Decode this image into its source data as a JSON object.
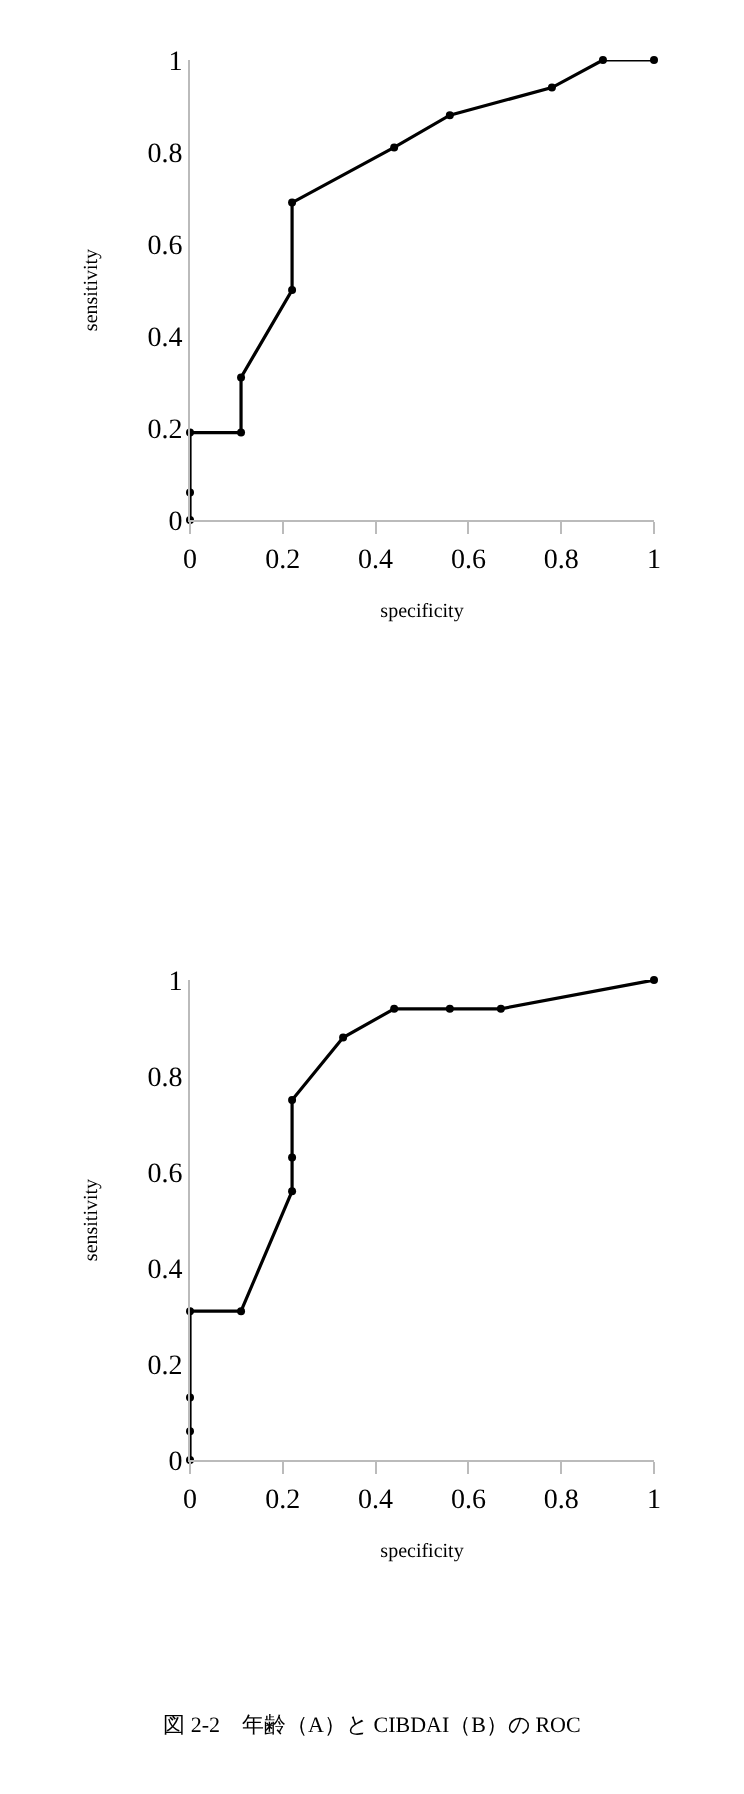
{
  "chart_data": [
    {
      "type": "line",
      "xlabel": "specificity",
      "ylabel": "sensitivity",
      "marker": "circle",
      "line_style": "solid",
      "xlim": [
        0,
        1
      ],
      "ylim": [
        0,
        1
      ],
      "xticks": [
        0,
        0.2,
        0.4,
        0.6,
        0.8,
        1
      ],
      "yticks": [
        0,
        0.2,
        0.4,
        0.6,
        0.8,
        1
      ],
      "series": [
        {
          "color": "#000000",
          "x": [
            0,
            0,
            0,
            0.11,
            0.11,
            0.22,
            0.22,
            0.44,
            0.56,
            0.78,
            0.89,
            1
          ],
          "values": [
            0,
            0.06,
            0.19,
            0.19,
            0.31,
            0.5,
            0.69,
            0.81,
            0.88,
            0.94,
            1,
            1
          ]
        }
      ]
    },
    {
      "type": "line",
      "xlabel": "specificity",
      "ylabel": "sensitivity",
      "marker": "circle",
      "line_style": "solid",
      "xlim": [
        0,
        1
      ],
      "ylim": [
        0,
        1
      ],
      "xticks": [
        0,
        0.2,
        0.4,
        0.6,
        0.8,
        1
      ],
      "yticks": [
        0,
        0.2,
        0.4,
        0.6,
        0.8,
        1
      ],
      "series": [
        {
          "color": "#000000",
          "x": [
            0,
            0,
            0,
            0,
            0.11,
            0.22,
            0.22,
            0.22,
            0.33,
            0.44,
            0.56,
            0.67,
            1
          ],
          "values": [
            0,
            0.06,
            0.13,
            0.31,
            0.31,
            0.56,
            0.63,
            0.75,
            0.88,
            0.94,
            0.94,
            0.94,
            1
          ]
        }
      ],
      "annotations": [
        "図 2-2　年齢（A）と CIBDAI（B）の ROC"
      ]
    }
  ]
}
